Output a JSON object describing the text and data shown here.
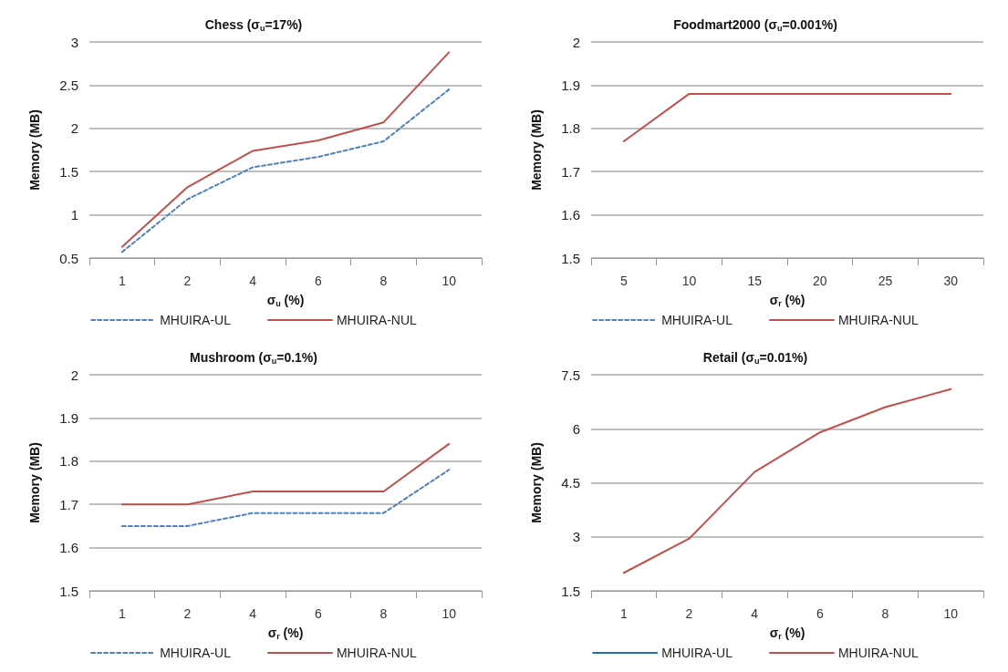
{
  "chart_data": [
    {
      "type": "line",
      "title": "Chess (σ$_{u}$=17%)",
      "xlabel": "σ$_{u}$ (%)",
      "ylabel": "Memory (MB)",
      "categories": [
        "1",
        "2",
        "4",
        "6",
        "8",
        "10"
      ],
      "ylim": [
        0.5,
        3
      ],
      "yticks": [
        0.5,
        1,
        1.5,
        2,
        2.5,
        3
      ],
      "grid": "y",
      "legend": "bottom",
      "marker": "none",
      "series": [
        {
          "name": "MHUIRA-UL",
          "color": "#4f81bd",
          "line_style": "dashed",
          "values": [
            0.57,
            1.18,
            1.55,
            1.67,
            1.85,
            2.45
          ]
        },
        {
          "name": "MHUIRA-NUL",
          "color": "#c0504d",
          "line_style": "solid",
          "values": [
            0.63,
            1.32,
            1.74,
            1.86,
            2.07,
            2.88
          ]
        }
      ]
    },
    {
      "type": "line",
      "title": "Foodmart2000 (σ$_{u}$=0.001%)",
      "xlabel": "σ$_{r}$ (%)",
      "ylabel": "Memory (MB)",
      "categories": [
        "5",
        "10",
        "15",
        "20",
        "25",
        "30"
      ],
      "ylim": [
        1.5,
        2
      ],
      "yticks": [
        1.5,
        1.6,
        1.7,
        1.8,
        1.9,
        2
      ],
      "grid": "y",
      "legend": "bottom",
      "marker": "none",
      "series": [
        {
          "name": "MHUIRA-UL",
          "color": "#4f81bd",
          "line_style": "dashed",
          "values": [
            null,
            null,
            null,
            null,
            null,
            null
          ]
        },
        {
          "name": "MHUIRA-NUL",
          "color": "#c0504d",
          "line_style": "solid",
          "values": [
            1.77,
            1.88,
            1.88,
            1.88,
            1.88,
            1.88
          ]
        }
      ]
    },
    {
      "type": "line",
      "title": "Mushroom (σ$_{u}$=0.1%)",
      "xlabel": "σ$_{r}$ (%)",
      "ylabel": "Memory (MB)",
      "categories": [
        "1",
        "2",
        "4",
        "6",
        "8",
        "10"
      ],
      "ylim": [
        1.5,
        2
      ],
      "yticks": [
        1.5,
        1.6,
        1.7,
        1.8,
        1.9,
        2
      ],
      "grid": "y",
      "legend": "bottom",
      "marker": "none",
      "series": [
        {
          "name": "MHUIRA-UL",
          "color": "#4f81bd",
          "line_style": "dashed",
          "values": [
            1.65,
            1.65,
            1.68,
            1.68,
            1.68,
            1.78
          ]
        },
        {
          "name": "MHUIRA-NUL",
          "color": "#c0504d",
          "line_style": "solid",
          "values": [
            1.7,
            1.7,
            1.73,
            1.73,
            1.73,
            1.84
          ]
        }
      ]
    },
    {
      "type": "line",
      "title": "Retail (σ$_{u}$=0.01%)",
      "xlabel": "σ$_{r}$ (%)",
      "ylabel": "Memory (MB)",
      "categories": [
        "1",
        "2",
        "4",
        "6",
        "8",
        "10"
      ],
      "ylim": [
        1.5,
        7.5
      ],
      "yticks": [
        1.5,
        3,
        4.5,
        6,
        7.5
      ],
      "grid": "y",
      "legend": "bottom",
      "marker": "none",
      "series": [
        {
          "name": "MHUIRA-UL",
          "color": "#1f6fb5",
          "line_style": "solid",
          "values": [
            null,
            null,
            null,
            null,
            null,
            null
          ]
        },
        {
          "name": "MHUIRA-NUL",
          "color": "#c0504d",
          "line_style": "solid",
          "values": [
            2.0,
            2.95,
            4.8,
            5.9,
            6.6,
            7.1
          ]
        }
      ]
    }
  ]
}
